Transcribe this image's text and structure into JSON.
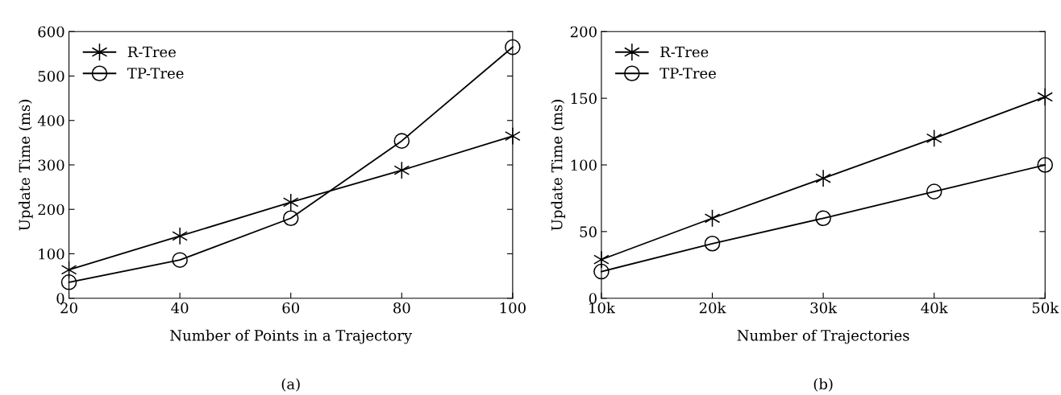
{
  "chart_data": [
    {
      "type": "line",
      "x": [
        20,
        40,
        60,
        80,
        100
      ],
      "xlabel": "Number of Points in a Trajectory",
      "ylabel": "Update Time (ms)",
      "xlim": [
        20,
        100
      ],
      "xticks": [
        20,
        40,
        60,
        80,
        100
      ],
      "ylim": [
        0,
        600
      ],
      "yticks": [
        0,
        100,
        200,
        300,
        400,
        500,
        600
      ],
      "legend": "top left",
      "grid": false,
      "line_style": "solid",
      "annotations": [
        "(a)"
      ],
      "series": [
        {
          "name": "R-Tree",
          "color": "#000000",
          "marker": "cross",
          "values": [
            64,
            140,
            216,
            288,
            365
          ]
        },
        {
          "name": "TP-Tree",
          "color": "#000000",
          "marker": "circle",
          "values": [
            36,
            86,
            180,
            354,
            565
          ]
        }
      ]
    },
    {
      "type": "line",
      "x": [
        10000,
        20000,
        30000,
        40000,
        50000
      ],
      "xlabel": "Number of Trajectories",
      "ylabel": "Update Time (ms)",
      "xlim": [
        10000,
        50000
      ],
      "xticks": [
        {
          "value": 10000,
          "label": "10k"
        },
        {
          "value": 20000,
          "label": "20k"
        },
        {
          "value": 30000,
          "label": "30k"
        },
        {
          "value": 40000,
          "label": "40k"
        },
        {
          "value": 50000,
          "label": "50k"
        }
      ],
      "ylim": [
        0,
        200
      ],
      "yticks": [
        0,
        50,
        100,
        150,
        200
      ],
      "legend": "top left",
      "grid": false,
      "line_style": "solid",
      "annotations": [
        "(b)"
      ],
      "series": [
        {
          "name": "R-Tree",
          "color": "#000000",
          "marker": "cross",
          "values": [
            29,
            60,
            90,
            120,
            151
          ]
        },
        {
          "name": "TP-Tree",
          "color": "#000000",
          "marker": "circle",
          "values": [
            20,
            41,
            60,
            80,
            100
          ]
        }
      ]
    }
  ]
}
